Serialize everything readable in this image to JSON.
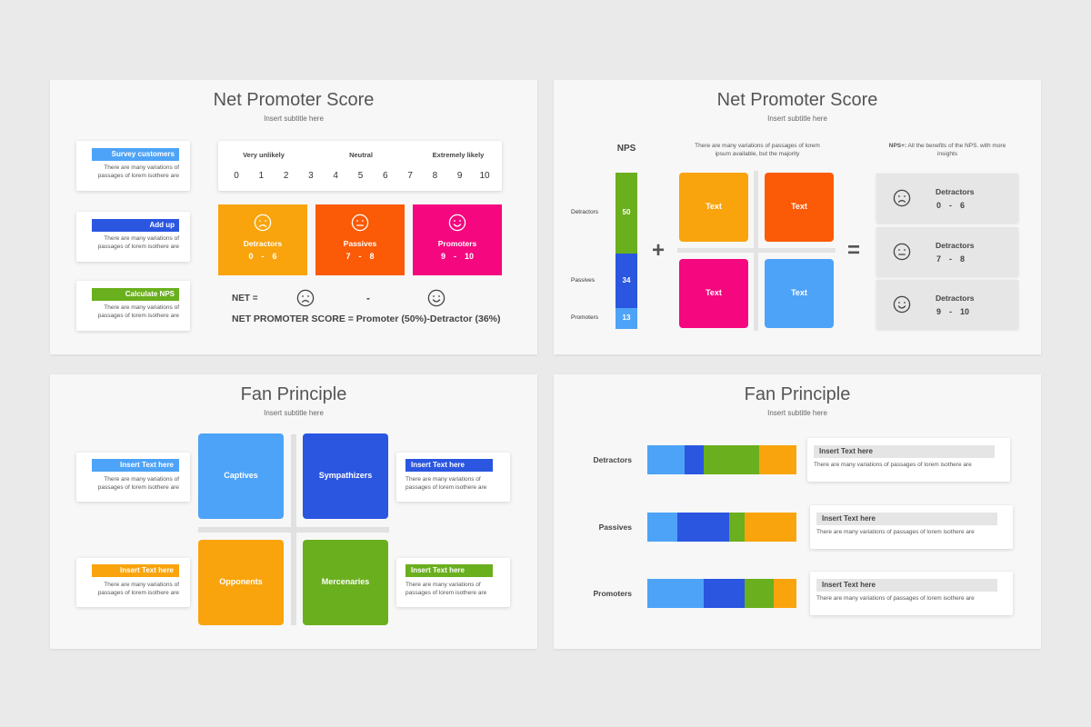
{
  "slides": [
    {
      "title": "Net Promoter Score",
      "subtitle": "Insert subtitle here",
      "steps": [
        {
          "label": "Survey customers",
          "text": "There are many variations of passages of lorem isothere are"
        },
        {
          "label": "Add up",
          "text": "There are many variations of passages of lorem isothere are"
        },
        {
          "label": "Calculate NPS",
          "text": "There are many variations of passages of lorem isothere are"
        }
      ],
      "scale_labels": [
        "Very unlikely",
        "Neutral",
        "Extremely likely"
      ],
      "scale": [
        0,
        1,
        2,
        3,
        4,
        5,
        6,
        7,
        8,
        9,
        10
      ],
      "groups": [
        {
          "label": "Detractors",
          "from": 0,
          "to": 6
        },
        {
          "label": "Passives",
          "from": 7,
          "to": 8
        },
        {
          "label": "Promoters",
          "from": 9,
          "to": 10
        }
      ],
      "range_separator": "-",
      "net_label": "NET =",
      "minus": "-",
      "formula": "NET PROMOTER SCORE = Promoter (50%)-Detractor (36%)"
    },
    {
      "title": "Net Promoter Score",
      "subtitle": "Insert subtitle here",
      "nps_label": "NPS",
      "note": "There are many variations of passages of lorem ipsum available, but the majority",
      "plus_note_label": "NPS+:",
      "plus_note_text": "All the benefits of the NPS. with more insights",
      "bar": [
        {
          "label": "Detractors",
          "value": 50
        },
        {
          "label": "Passives",
          "value": 34
        },
        {
          "label": "Promoters",
          "value": 13
        }
      ],
      "plus": "+",
      "equals": "=",
      "boxes": [
        "Text",
        "Text",
        "Text",
        "Text"
      ],
      "results": [
        {
          "label": "Detractors",
          "from": 0,
          "to": 6
        },
        {
          "label": "Detractors",
          "from": 7,
          "to": 8
        },
        {
          "label": "Detractors",
          "from": 9,
          "to": 10
        }
      ],
      "range_separator": "-"
    },
    {
      "title": "Fan Principle",
      "subtitle": "Insert subtitle here",
      "quadrants": [
        "Captives",
        "Sympathizers",
        "Opponents",
        "Mercenaries"
      ],
      "notes": [
        {
          "label": "Insert Text here",
          "text": "There are many variations of passages of lorem isothere are"
        },
        {
          "label": "Insert Text here",
          "text": "There are many variations of passages of lorem isothere are"
        },
        {
          "label": "Insert Text here",
          "text": "There are many variations of passages of lorem isothere are"
        },
        {
          "label": "Insert Text here",
          "text": "There are many variations of passages of lorem isothere are"
        }
      ]
    },
    {
      "title": "Fan Principle",
      "subtitle": "Insert subtitle here",
      "segment_colors": [
        "#4da3f7",
        "#2b56e0",
        "#6aaf1d",
        "#f9a40d"
      ],
      "rows": [
        {
          "label": "Detractors",
          "segments": [
            25,
            13,
            37,
            25
          ],
          "heading": "Insert Text here",
          "text": "There are many variations of passages of lorem isothere are"
        },
        {
          "label": "Passives",
          "segments": [
            20,
            35,
            10,
            35
          ],
          "heading": "Insert Text here",
          "text": "There are many variations of passages of lorem isothere are"
        },
        {
          "label": "Promoters",
          "segments": [
            38,
            27,
            20,
            15
          ],
          "heading": "Insert Text here",
          "text": "There are many variations of passages of lorem isothere are"
        }
      ]
    }
  ]
}
